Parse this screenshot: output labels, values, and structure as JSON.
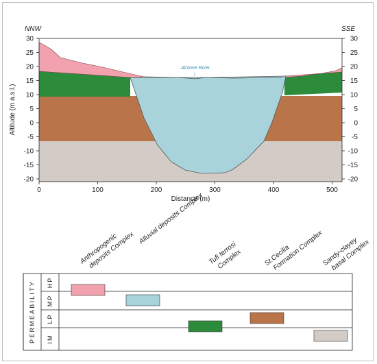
{
  "section": {
    "left_direction": "NNW",
    "right_direction": "SSE",
    "river_label": "Almone River",
    "y_axis_label": "Altitude (m a.s.l.)",
    "x_axis_label": "Distance (m)",
    "y_ticks": [
      "30",
      "25",
      "20",
      "15",
      "10",
      "5",
      "0",
      "-5",
      "-10",
      "-15",
      "-20"
    ],
    "x_ticks": [
      "0",
      "100",
      "200",
      "300",
      "400",
      "500"
    ]
  },
  "legend": {
    "units": [
      {
        "label": "Anthropogenic deposits Complex",
        "lines": [
          "Anthropogenic",
          "deposits Complex"
        ],
        "color": "#f2a2ae"
      },
      {
        "label": "Alluvial deposits Complex",
        "lines": [
          "Alluvial deposits Complex"
        ],
        "color": "#a8d3da"
      },
      {
        "label": "Tufi terrosi Complex",
        "lines": [
          "Tufi terrosi",
          "Complex"
        ],
        "color": "#2c8c3b"
      },
      {
        "label": "St.Cecilia Formation Complex",
        "lines": [
          "St.Cecilia",
          "Formation Complex"
        ],
        "color": "#b9744a"
      },
      {
        "label": "Sandy-clayey basal Complex",
        "lines": [
          "Sandy-clayey",
          "basal Complex"
        ],
        "color": "#d3cbc6"
      }
    ]
  },
  "permeability": {
    "title": "PERMEABILITY",
    "classes": [
      "HP",
      "MP",
      "LP",
      "IM"
    ],
    "assignments": [
      {
        "unit": "Anthropogenic deposits Complex",
        "class": "HP"
      },
      {
        "unit": "Alluvial deposits Complex",
        "class": "MP"
      },
      {
        "unit": "St.Cecilia Formation Complex",
        "class": "LP"
      },
      {
        "unit": "Tufi terrosi Complex",
        "class": "IM"
      },
      {
        "unit": "Sandy-clayey basal Complex",
        "class": "IM"
      }
    ]
  }
}
